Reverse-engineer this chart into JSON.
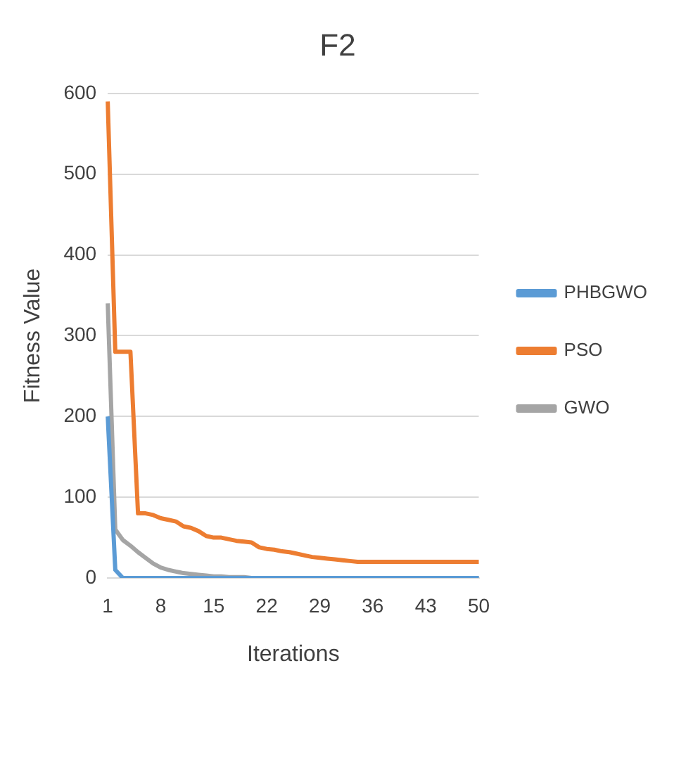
{
  "chart_data": {
    "type": "line",
    "title": "F2",
    "xlabel": "Iterations",
    "ylabel": "Fitness Value",
    "categories": [
      "1",
      null,
      null,
      null,
      null,
      null,
      null,
      "8",
      null,
      null,
      null,
      null,
      null,
      null,
      "15",
      null,
      null,
      null,
      null,
      null,
      null,
      "22",
      null,
      null,
      null,
      null,
      null,
      null,
      "29",
      null,
      null,
      null,
      null,
      null,
      null,
      "36",
      null,
      null,
      null,
      null,
      null,
      null,
      "43",
      null,
      null,
      null,
      null,
      null,
      null,
      "50"
    ],
    "series": [
      {
        "name": "PHBGWO",
        "color": "#5b9bd5",
        "values": [
          200,
          10,
          0,
          0,
          0,
          0,
          0,
          0,
          0,
          0,
          0,
          0,
          0,
          0,
          0,
          0,
          0,
          0,
          0,
          0,
          0,
          0,
          0,
          0,
          0,
          0,
          0,
          0,
          0,
          0,
          0,
          0,
          0,
          0,
          0,
          0,
          0,
          0,
          0,
          0,
          0,
          0,
          0,
          0,
          0,
          0,
          0,
          0,
          0,
          0
        ]
      },
      {
        "name": "PSO",
        "color": "#ed7d31",
        "values": [
          590,
          280,
          280,
          280,
          80,
          80,
          78,
          74,
          72,
          70,
          64,
          62,
          58,
          52,
          50,
          50,
          48,
          46,
          45,
          44,
          38,
          36,
          35,
          33,
          32,
          30,
          28,
          26,
          25,
          24,
          23,
          22,
          21,
          20,
          20,
          20,
          20,
          20,
          20,
          20,
          20,
          20,
          20,
          20,
          20,
          20,
          20,
          20,
          20,
          20
        ]
      },
      {
        "name": "GWO",
        "color": "#a5a5a5",
        "values": [
          340,
          60,
          47,
          40,
          32,
          25,
          18,
          13,
          10,
          8,
          6,
          5,
          4,
          3,
          2,
          2,
          1,
          1,
          1,
          0,
          0,
          0,
          0,
          0,
          0,
          0,
          0,
          0,
          0,
          0,
          0,
          0,
          0,
          0,
          0,
          0,
          0,
          0,
          0,
          0,
          0,
          0,
          0,
          0,
          0,
          0,
          0,
          0,
          0,
          0
        ]
      }
    ],
    "ylim": [
      0,
      600
    ],
    "yticks": [
      0,
      100,
      200,
      300,
      400,
      500,
      600
    ],
    "grid": "y",
    "legend": "right",
    "marker": "none",
    "line_style": "solid"
  }
}
